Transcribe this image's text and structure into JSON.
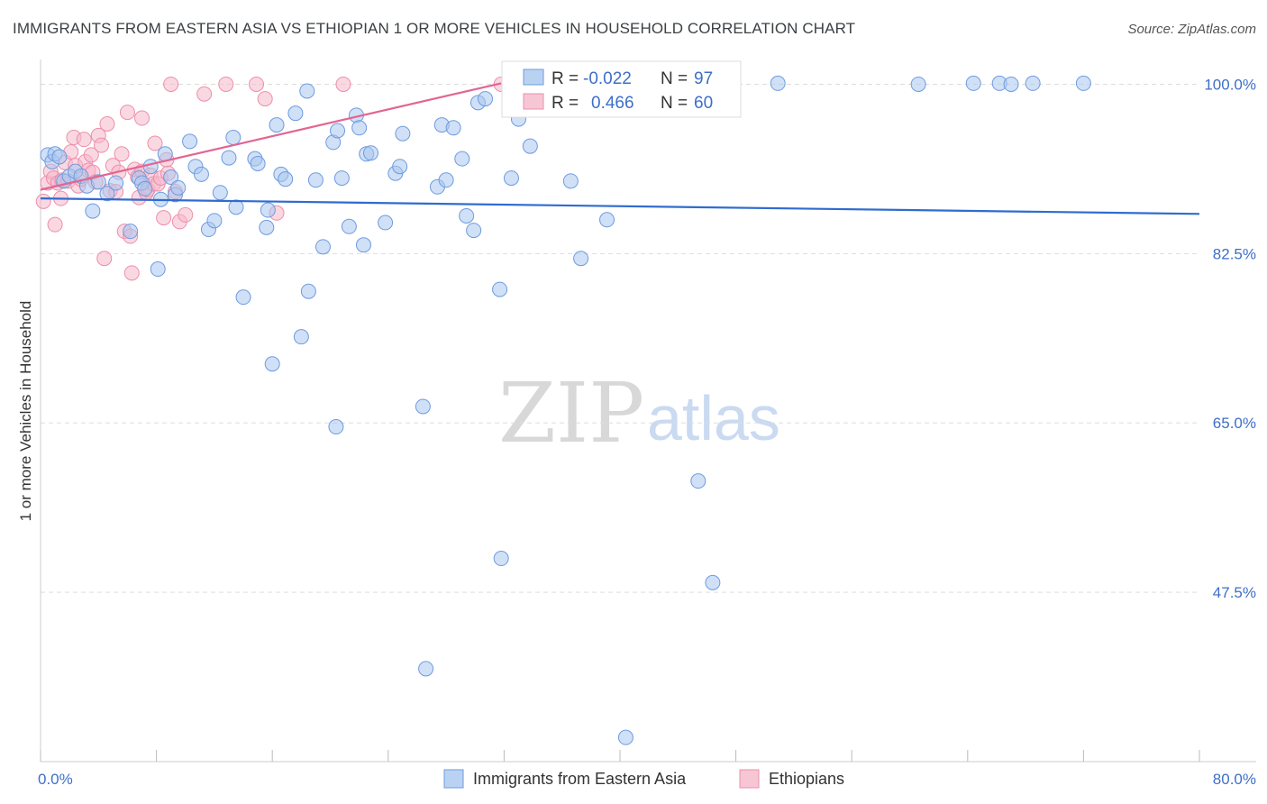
{
  "header": {
    "title": "IMMIGRANTS FROM EASTERN ASIA VS ETHIOPIAN 1 OR MORE VEHICLES IN HOUSEHOLD CORRELATION CHART",
    "source": "Source: ZipAtlas.com"
  },
  "watermark": {
    "zip": "ZIP",
    "atlas": "atlas"
  },
  "colors": {
    "blue_fill": "#a9c7ef",
    "blue_stroke": "#6e9be0",
    "blue_line": "#2f6ccf",
    "pink_fill": "#f5b8ca",
    "pink_stroke": "#ec8fab",
    "pink_line": "#e26592",
    "grid": "#dddddd",
    "tick_text": "#3d6fc9"
  },
  "legend": {
    "series1": {
      "label": "Immigrants from Eastern Asia",
      "r_label": "R =",
      "r_value": "-0.022",
      "n_label": "N =",
      "n_value": "97"
    },
    "series2": {
      "label": "Ethiopians",
      "r_label": "R =",
      "r_value": "0.466",
      "n_label": "N =",
      "n_value": "60"
    }
  },
  "chart_data": {
    "type": "scatter",
    "title": "IMMIGRANTS FROM EASTERN ASIA VS ETHIOPIAN 1 OR MORE VEHICLES IN HOUSEHOLD CORRELATION CHART",
    "xlabel": "",
    "ylabel": "1 or more Vehicles in Household",
    "xlim": [
      0,
      80
    ],
    "ylim": [
      30,
      102
    ],
    "x_tick_labels": [
      "0.0%",
      "80.0%"
    ],
    "y_ticks": [
      47.5,
      65.0,
      82.5,
      100.0
    ],
    "y_tick_labels": [
      "47.5%",
      "65.0%",
      "82.5%",
      "100.0%"
    ],
    "x_minor_ticks": [
      0,
      8,
      16,
      24,
      32,
      40,
      48,
      56,
      64,
      72,
      80
    ],
    "grid": true,
    "legend_placement": "top-center",
    "series": [
      {
        "name": "Immigrants from Eastern Asia",
        "color": "#a9c7ef",
        "trend": {
          "x": [
            0,
            80
          ],
          "y": [
            88.2,
            86.6
          ]
        },
        "points": [
          [
            0.5,
            92.7
          ],
          [
            0.8,
            92.0
          ],
          [
            1.0,
            92.8
          ],
          [
            1.3,
            92.5
          ],
          [
            1.6,
            90.0
          ],
          [
            2.0,
            90.5
          ],
          [
            2.4,
            91.0
          ],
          [
            2.8,
            90.5
          ],
          [
            3.2,
            89.5
          ],
          [
            3.6,
            86.9
          ],
          [
            4.0,
            89.9
          ],
          [
            4.6,
            88.7
          ],
          [
            5.2,
            89.8
          ],
          [
            6.2,
            84.8
          ],
          [
            6.8,
            90.3
          ],
          [
            7.0,
            89.8
          ],
          [
            7.2,
            89.2
          ],
          [
            7.6,
            91.5
          ],
          [
            8.1,
            80.9
          ],
          [
            8.3,
            88.1
          ],
          [
            8.6,
            92.8
          ],
          [
            9.0,
            90.4
          ],
          [
            9.3,
            88.6
          ],
          [
            9.5,
            89.3
          ],
          [
            10.3,
            94.1
          ],
          [
            10.7,
            91.5
          ],
          [
            11.1,
            90.7
          ],
          [
            11.6,
            85.0
          ],
          [
            12.0,
            85.9
          ],
          [
            12.4,
            88.8
          ],
          [
            13.0,
            92.4
          ],
          [
            13.3,
            94.5
          ],
          [
            13.5,
            87.3
          ],
          [
            14.0,
            78.0
          ],
          [
            14.8,
            92.3
          ],
          [
            15.0,
            91.8
          ],
          [
            15.6,
            85.2
          ],
          [
            15.7,
            87.0
          ],
          [
            16.0,
            71.1
          ],
          [
            16.3,
            95.8
          ],
          [
            16.6,
            90.7
          ],
          [
            16.9,
            90.2
          ],
          [
            17.6,
            97.0
          ],
          [
            18.0,
            73.9
          ],
          [
            18.4,
            99.3
          ],
          [
            18.5,
            78.6
          ],
          [
            19.0,
            90.1
          ],
          [
            19.5,
            83.2
          ],
          [
            20.2,
            94.0
          ],
          [
            20.4,
            64.6
          ],
          [
            20.5,
            95.2
          ],
          [
            20.8,
            90.3
          ],
          [
            21.3,
            85.3
          ],
          [
            21.8,
            96.8
          ],
          [
            22.0,
            95.5
          ],
          [
            22.3,
            83.4
          ],
          [
            22.5,
            92.8
          ],
          [
            22.8,
            92.9
          ],
          [
            23.8,
            85.7
          ],
          [
            24.5,
            90.8
          ],
          [
            24.8,
            91.5
          ],
          [
            25.0,
            94.9
          ],
          [
            26.4,
            66.7
          ],
          [
            26.6,
            39.6
          ],
          [
            27.4,
            89.4
          ],
          [
            27.7,
            95.8
          ],
          [
            28.0,
            90.1
          ],
          [
            28.5,
            95.5
          ],
          [
            29.1,
            92.3
          ],
          [
            29.4,
            86.4
          ],
          [
            29.9,
            84.9
          ],
          [
            30.2,
            98.1
          ],
          [
            30.7,
            98.5
          ],
          [
            31.7,
            78.8
          ],
          [
            31.8,
            51.0
          ],
          [
            32.5,
            90.3
          ],
          [
            33.0,
            96.4
          ],
          [
            33.8,
            93.6
          ],
          [
            35.0,
            100.1
          ],
          [
            36.3,
            100.0
          ],
          [
            36.6,
            90.0
          ],
          [
            37.3,
            82.0
          ],
          [
            38.2,
            100.0
          ],
          [
            39.1,
            86.0
          ],
          [
            40.4,
            32.5
          ],
          [
            41.1,
            100.0
          ],
          [
            45.4,
            59.0
          ],
          [
            46.4,
            48.5
          ],
          [
            47.0,
            100.0
          ],
          [
            50.9,
            100.1
          ],
          [
            60.6,
            100.0
          ],
          [
            64.4,
            100.1
          ],
          [
            66.2,
            100.1
          ],
          [
            67.0,
            100.0
          ],
          [
            68.5,
            100.1
          ],
          [
            72.0,
            100.1
          ]
        ]
      },
      {
        "name": "Ethiopians",
        "color": "#f5b8ca",
        "trend": {
          "x": [
            0,
            31.8
          ],
          "y": [
            89.1,
            100.1
          ]
        },
        "points": [
          [
            0.2,
            87.9
          ],
          [
            0.5,
            89.8
          ],
          [
            0.7,
            91.0
          ],
          [
            0.9,
            90.3
          ],
          [
            1.0,
            85.5
          ],
          [
            1.2,
            89.8
          ],
          [
            1.4,
            88.2
          ],
          [
            1.5,
            90.1
          ],
          [
            1.7,
            91.9
          ],
          [
            1.9,
            90.0
          ],
          [
            2.1,
            93.0
          ],
          [
            2.3,
            94.5
          ],
          [
            2.4,
            91.6
          ],
          [
            2.6,
            89.5
          ],
          [
            2.8,
            90.2
          ],
          [
            3.0,
            94.3
          ],
          [
            3.1,
            92.0
          ],
          [
            3.3,
            91.1
          ],
          [
            3.5,
            92.7
          ],
          [
            3.6,
            90.9
          ],
          [
            3.8,
            89.9
          ],
          [
            4.0,
            94.7
          ],
          [
            4.2,
            93.7
          ],
          [
            4.4,
            82.0
          ],
          [
            4.6,
            95.9
          ],
          [
            4.8,
            89.0
          ],
          [
            5.0,
            91.6
          ],
          [
            5.2,
            88.9
          ],
          [
            5.4,
            90.9
          ],
          [
            5.6,
            92.8
          ],
          [
            5.8,
            84.8
          ],
          [
            6.0,
            97.1
          ],
          [
            6.2,
            84.3
          ],
          [
            6.3,
            80.5
          ],
          [
            6.5,
            91.2
          ],
          [
            6.7,
            90.4
          ],
          [
            6.8,
            88.3
          ],
          [
            7.0,
            91.0
          ],
          [
            7.0,
            96.5
          ],
          [
            7.3,
            88.8
          ],
          [
            7.4,
            89.1
          ],
          [
            7.6,
            90.6
          ],
          [
            7.8,
            89.7
          ],
          [
            7.9,
            93.9
          ],
          [
            8.1,
            89.7
          ],
          [
            8.3,
            90.3
          ],
          [
            8.5,
            86.2
          ],
          [
            8.7,
            92.2
          ],
          [
            8.8,
            90.8
          ],
          [
            9.0,
            100.0
          ],
          [
            9.3,
            88.9
          ],
          [
            9.6,
            85.8
          ],
          [
            10.0,
            86.5
          ],
          [
            11.3,
            99.0
          ],
          [
            12.8,
            100.0
          ],
          [
            14.9,
            100.0
          ],
          [
            15.5,
            98.5
          ],
          [
            16.3,
            86.7
          ],
          [
            20.9,
            100.0
          ],
          [
            31.8,
            100.0
          ]
        ]
      }
    ]
  }
}
